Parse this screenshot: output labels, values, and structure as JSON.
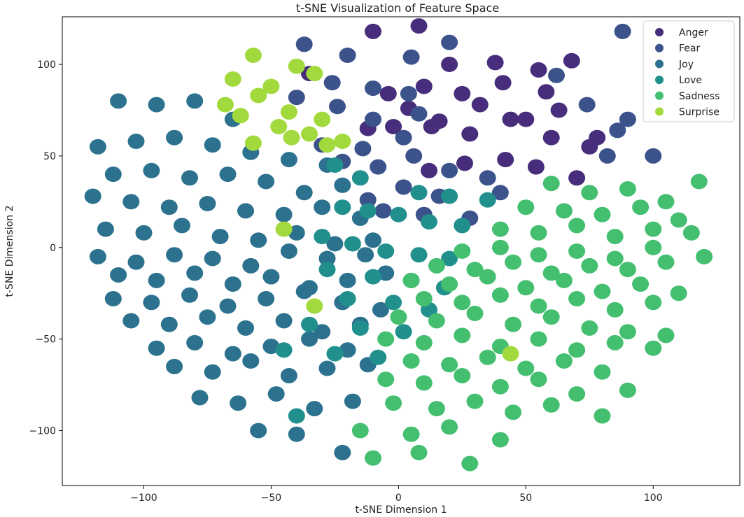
{
  "chart_data": {
    "type": "scatter",
    "title": "t-SNE Visualization of Feature Space",
    "xlabel": "t-SNE Dimension 1",
    "ylabel": "t-SNE Dimension 2",
    "xlim": [
      -132,
      134
    ],
    "ylim": [
      -130,
      126
    ],
    "xticks": [
      -100,
      -50,
      0,
      50,
      100
    ],
    "yticks": [
      -100,
      -50,
      0,
      50,
      100
    ],
    "xtick_labels": [
      "−100",
      "−50",
      "0",
      "50",
      "100"
    ],
    "ytick_labels": [
      "−100",
      "−50",
      "0",
      "50",
      "100"
    ],
    "grid": false,
    "legend": "top-right",
    "series": [
      {
        "name": "Anger",
        "color": "#472d7b",
        "x": [
          -10,
          8,
          -35,
          20,
          38,
          55,
          68,
          -4,
          10,
          25,
          41,
          58,
          -12,
          4,
          16,
          32,
          50,
          63,
          78,
          -2,
          13,
          28,
          44,
          60,
          75,
          12,
          26,
          42,
          54,
          70
        ],
        "y": [
          118,
          121,
          95,
          100,
          101,
          97,
          102,
          84,
          88,
          84,
          90,
          85,
          65,
          76,
          69,
          78,
          70,
          75,
          60,
          66,
          66,
          62,
          70,
          60,
          55,
          42,
          46,
          48,
          44,
          38
        ]
      },
      {
        "name": "Fear",
        "color": "#3b528b",
        "x": [
          -37,
          -20,
          5,
          20,
          88,
          100,
          -26,
          -10,
          4,
          -40,
          -24,
          -10,
          8,
          -30,
          -14,
          2,
          86,
          62,
          74,
          -22,
          -8,
          6,
          20,
          35,
          82,
          90,
          -12,
          2,
          16,
          40,
          -6,
          10,
          28
        ],
        "y": [
          111,
          105,
          104,
          112,
          118,
          50,
          90,
          87,
          84,
          82,
          77,
          70,
          73,
          56,
          54,
          60,
          64,
          94,
          78,
          47,
          44,
          50,
          42,
          38,
          50,
          70,
          26,
          33,
          28,
          30,
          20,
          18,
          16
        ]
      },
      {
        "name": "Joy",
        "color": "#2c728e",
        "x": [
          -110,
          -95,
          -80,
          -65,
          -118,
          -103,
          -88,
          -73,
          -58,
          -43,
          -28,
          -112,
          -97,
          -82,
          -67,
          -52,
          -37,
          -22,
          -120,
          -105,
          -90,
          -75,
          -60,
          -45,
          -30,
          -15,
          -115,
          -100,
          -85,
          -70,
          -55,
          -40,
          -25,
          -10,
          -118,
          -103,
          -88,
          -73,
          -58,
          -43,
          -28,
          -13,
          -110,
          -95,
          -80,
          -65,
          -50,
          -35,
          -20,
          -5,
          -112,
          -97,
          -82,
          -67,
          -52,
          -37,
          -22,
          -7,
          -105,
          -90,
          -75,
          -60,
          -45,
          -30,
          -15,
          -95,
          -80,
          -65,
          -50,
          -35,
          -20,
          -88,
          -73,
          -58,
          -43,
          -28,
          -12,
          -78,
          -63,
          -48,
          -33,
          -18,
          -55,
          -40,
          -22
        ],
        "y": [
          80,
          78,
          80,
          70,
          55,
          58,
          60,
          56,
          52,
          48,
          45,
          40,
          42,
          38,
          40,
          36,
          30,
          34,
          28,
          25,
          22,
          24,
          20,
          18,
          22,
          16,
          10,
          8,
          12,
          6,
          4,
          8,
          2,
          4,
          -5,
          -8,
          -4,
          -6,
          -10,
          -2,
          -6,
          -4,
          -15,
          -18,
          -14,
          -20,
          -16,
          -22,
          -18,
          -14,
          -28,
          -30,
          -26,
          -32,
          -28,
          -24,
          -30,
          -34,
          -40,
          -42,
          -38,
          -44,
          -40,
          -46,
          -42,
          -55,
          -52,
          -58,
          -54,
          -50,
          -56,
          -65,
          -68,
          -62,
          -70,
          -66,
          -64,
          -82,
          -85,
          -80,
          -88,
          -84,
          -100,
          -102,
          -112
        ]
      },
      {
        "name": "Love",
        "color": "#21908d",
        "x": [
          -25,
          -15,
          8,
          20,
          35,
          -22,
          -12,
          0,
          12,
          25,
          -30,
          -18,
          -5,
          8,
          20,
          -28,
          -10,
          5,
          18,
          -20,
          -2,
          12,
          -35,
          -15,
          2,
          -45,
          -25,
          -8,
          -40
        ],
        "y": [
          45,
          38,
          30,
          28,
          26,
          22,
          20,
          18,
          14,
          12,
          6,
          2,
          -2,
          -4,
          -6,
          -12,
          -16,
          -18,
          -22,
          -28,
          -30,
          -34,
          -42,
          -44,
          -46,
          -56,
          -58,
          -60,
          -92
        ]
      },
      {
        "name": "Sadness",
        "color": "#44bf70",
        "x": [
          60,
          75,
          90,
          105,
          118,
          50,
          65,
          80,
          95,
          110,
          40,
          55,
          70,
          85,
          100,
          115,
          25,
          40,
          55,
          70,
          85,
          100,
          15,
          30,
          45,
          60,
          75,
          90,
          105,
          120,
          5,
          20,
          35,
          50,
          65,
          80,
          95,
          110,
          10,
          25,
          40,
          55,
          70,
          85,
          100,
          0,
          15,
          30,
          45,
          60,
          75,
          90,
          105,
          -5,
          10,
          25,
          40,
          55,
          70,
          85,
          100,
          5,
          20,
          35,
          50,
          65,
          80,
          -5,
          10,
          25,
          40,
          55,
          70,
          90,
          -2,
          15,
          30,
          45,
          60,
          80,
          -15,
          5,
          20,
          40,
          -10,
          8,
          28
        ],
        "y": [
          35,
          30,
          32,
          25,
          36,
          22,
          20,
          18,
          22,
          15,
          10,
          8,
          12,
          6,
          10,
          8,
          -2,
          0,
          -4,
          -2,
          -6,
          0,
          -10,
          -12,
          -8,
          -14,
          -10,
          -12,
          -8,
          -5,
          -18,
          -20,
          -16,
          -22,
          -18,
          -24,
          -20,
          -25,
          -28,
          -30,
          -26,
          -32,
          -28,
          -34,
          -30,
          -38,
          -40,
          -36,
          -42,
          -38,
          -44,
          -46,
          -48,
          -50,
          -52,
          -48,
          -54,
          -50,
          -56,
          -52,
          -55,
          -62,
          -64,
          -60,
          -66,
          -62,
          -68,
          -72,
          -74,
          -70,
          -76,
          -72,
          -80,
          -78,
          -85,
          -88,
          -84,
          -90,
          -86,
          -92,
          -100,
          -102,
          -98,
          -105,
          -115,
          -112,
          -118
        ]
      },
      {
        "name": "Surprise",
        "color": "#a2d93c",
        "x": [
          -57,
          -40,
          -65,
          -50,
          -33,
          -68,
          -55,
          -43,
          -30,
          -62,
          -47,
          -35,
          -22,
          -57,
          -42,
          -28,
          -45,
          -33,
          44
        ],
        "y": [
          105,
          99,
          92,
          88,
          95,
          78,
          83,
          74,
          70,
          72,
          66,
          62,
          58,
          57,
          60,
          56,
          10,
          -32,
          -58
        ]
      }
    ]
  }
}
